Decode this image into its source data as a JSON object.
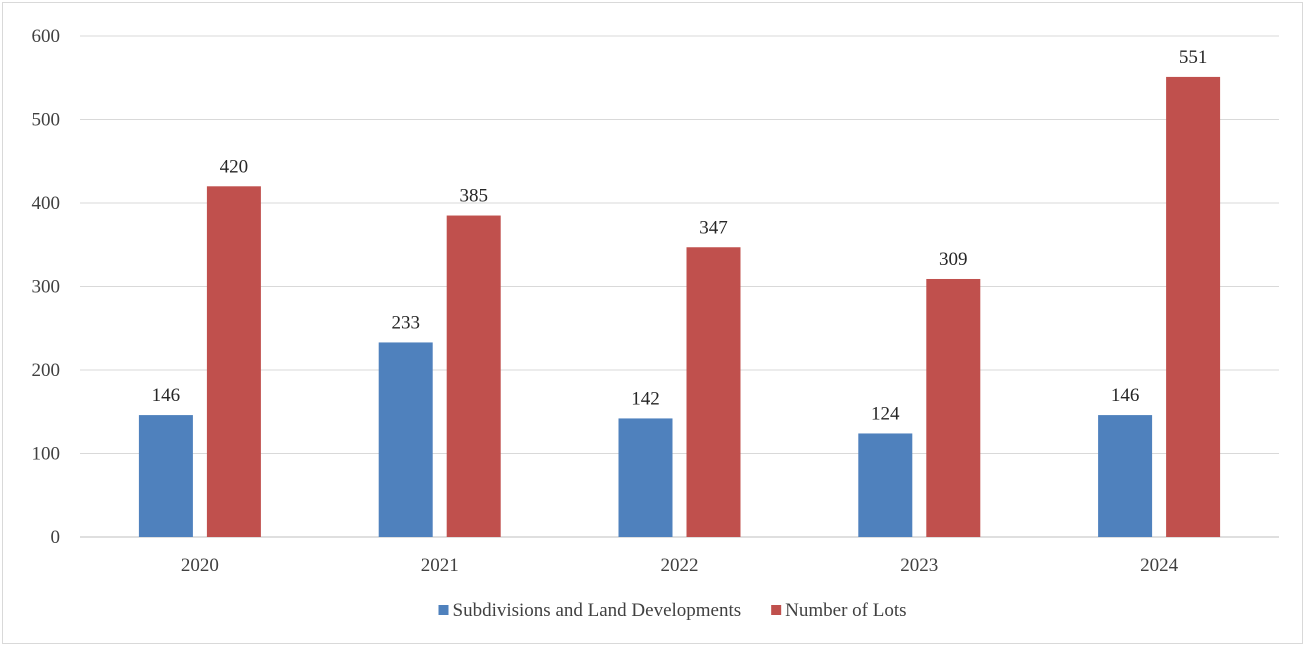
{
  "chart_data": {
    "type": "bar",
    "categories": [
      "2020",
      "2021",
      "2022",
      "2023",
      "2024"
    ],
    "series": [
      {
        "name": "Subdivisions and Land Developments",
        "values": [
          146,
          233,
          142,
          124,
          146
        ],
        "color": "#4f81bd"
      },
      {
        "name": "Number of Lots",
        "values": [
          420,
          385,
          347,
          309,
          551
        ],
        "color": "#c0504d"
      }
    ],
    "ylim": [
      0,
      600
    ],
    "yticks": [
      0,
      100,
      200,
      300,
      400,
      500,
      600
    ],
    "grid": true,
    "legend": "bottom",
    "data_labels": true
  }
}
